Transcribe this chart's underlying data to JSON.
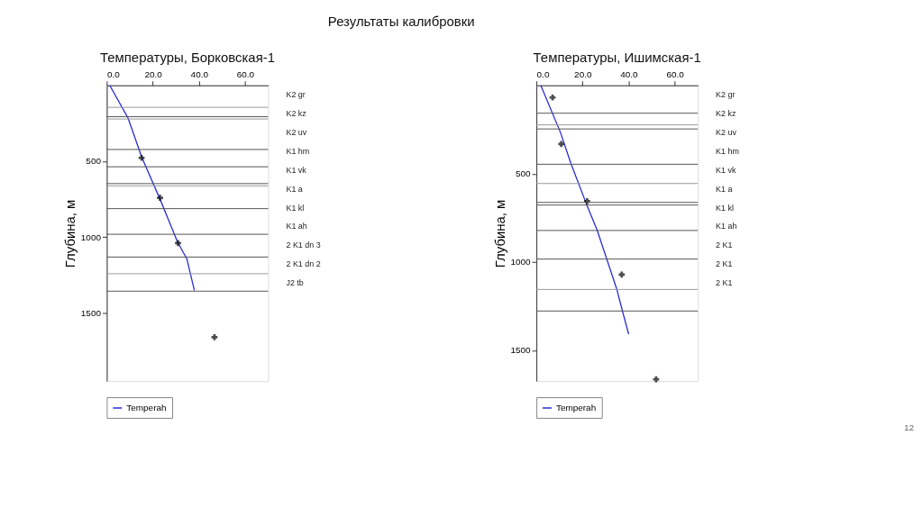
{
  "chart_data": [
    {
      "type": "line",
      "title": "Температуры, Борковская-1",
      "ylabel": "Глубина, м",
      "xlim": [
        0,
        70
      ],
      "xticks": [
        {
          "value": 0,
          "label": "0.0"
        },
        {
          "value": 20,
          "label": "20.0"
        },
        {
          "value": 40,
          "label": "40.0"
        },
        {
          "value": 60,
          "label": "60.0"
        }
      ],
      "ylim": [
        1950,
        0
      ],
      "yticks": [
        500,
        1000,
        1500
      ],
      "grid": false,
      "legend": "bottom",
      "series": [
        {
          "name": "Temperah",
          "color": "#2b2bd8",
          "line_style": "solid",
          "marker": "none",
          "x": [
            1.3,
            9.3,
            15.1,
            23.3,
            30.7,
            34.7,
            38.0
          ],
          "values": [
            0,
            218,
            471,
            758,
            1033,
            1143,
            1352
          ]
        },
        {
          "type": "scatter",
          "color": "#000000",
          "marker": "cross",
          "x": [
            15.1,
            23.1,
            30.9,
            46.7
          ],
          "values": [
            478,
            742,
            1040,
            1661
          ]
        }
      ],
      "ref_lines": [
        {
          "axis": "y",
          "value": 145,
          "color": "#999999"
        },
        {
          "axis": "y",
          "value": 207,
          "color": "#555555"
        },
        {
          "axis": "y",
          "value": 222,
          "color": "#999999"
        },
        {
          "axis": "y",
          "value": 423,
          "color": "#555555"
        },
        {
          "axis": "y",
          "value": 537,
          "color": "#555555"
        },
        {
          "axis": "y",
          "value": 648,
          "color": "#555555"
        },
        {
          "axis": "y",
          "value": 663,
          "color": "#999999"
        },
        {
          "axis": "y",
          "value": 813,
          "color": "#555555"
        },
        {
          "axis": "y",
          "value": 982,
          "color": "#555555"
        },
        {
          "axis": "y",
          "value": 1132,
          "color": "#555555"
        },
        {
          "axis": "y",
          "value": 1242,
          "color": "#999999"
        },
        {
          "axis": "y",
          "value": 1357,
          "color": "#555555"
        }
      ],
      "annotations": [
        "Результаты калибровки",
        "K2 gr",
        "K2 kz",
        "K2 uv",
        "K1 hm",
        "K1 vk",
        "K1 a",
        "K1 kl",
        "K1 ah",
        "2 K1 dn 3",
        "2 K1 dn 2",
        "J2 tb"
      ]
    },
    {
      "type": "line",
      "title": "Температуры, Ишимская-1",
      "ylabel": "Глубина, м",
      "xlim": [
        0,
        70
      ],
      "xticks": [
        {
          "value": 0,
          "label": "0.0"
        },
        {
          "value": 20,
          "label": "20.0"
        },
        {
          "value": 40,
          "label": "40.0"
        },
        {
          "value": 60,
          "label": "60.0"
        }
      ],
      "ylim": [
        1675,
        0
      ],
      "yticks": [
        500,
        1000,
        1500
      ],
      "grid": false,
      "legend": "bottom",
      "series": [
        {
          "name": "Temperah",
          "color": "#2b2bd8",
          "line_style": "solid",
          "marker": "none",
          "x": [
            1.9,
            10.4,
            15.0,
            21.6,
            26.3,
            34.9,
            37.3,
            40.0
          ],
          "values": [
            0,
            266,
            444,
            669,
            819,
            1157,
            1278,
            1409
          ]
        },
        {
          "type": "scatter",
          "color": "#000000",
          "marker": "cross",
          "x": [
            7.0,
            10.8,
            22.0,
            37.0,
            51.9
          ],
          "values": [
            69,
            332,
            656,
            1072,
            1665
          ]
        }
      ],
      "ref_lines": [
        {
          "axis": "y",
          "value": 158,
          "color": "#555555"
        },
        {
          "axis": "y",
          "value": 224,
          "color": "#999999"
        },
        {
          "axis": "y",
          "value": 247,
          "color": "#555555"
        },
        {
          "axis": "y",
          "value": 447,
          "color": "#555555"
        },
        {
          "axis": "y",
          "value": 556,
          "color": "#999999"
        },
        {
          "axis": "y",
          "value": 663,
          "color": "#555555"
        },
        {
          "axis": "y",
          "value": 678,
          "color": "#555555"
        },
        {
          "axis": "y",
          "value": 822,
          "color": "#555555"
        },
        {
          "axis": "y",
          "value": 984,
          "color": "#555555"
        },
        {
          "axis": "y",
          "value": 1156,
          "color": "#999999"
        },
        {
          "axis": "y",
          "value": 1278,
          "color": "#555555"
        }
      ],
      "annotations": [
        "12",
        "K2 gr",
        "K2 kz",
        "K2 uv",
        "K1 hm",
        "K1 vk",
        "K1 a",
        "K1 kl",
        "K1 ah",
        "2 K1",
        "2 K1",
        "2 K1"
      ]
    }
  ]
}
